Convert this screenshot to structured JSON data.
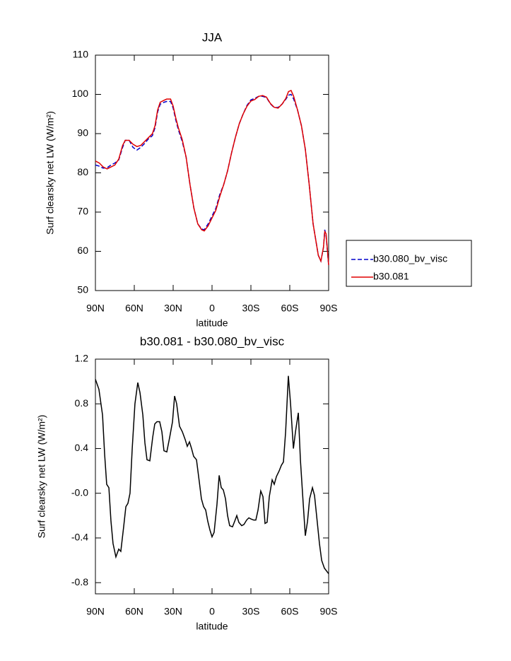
{
  "chart_data": [
    {
      "type": "line",
      "title": "JJA",
      "xlabel": "latitude",
      "ylabel": "Surf clearsky net LW (W/m²)",
      "xlim": [
        90,
        -90
      ],
      "ylim": [
        50,
        110
      ],
      "xticks": [
        {
          "value": 90,
          "label": "90N"
        },
        {
          "value": 60,
          "label": "60N"
        },
        {
          "value": 30,
          "label": "30N"
        },
        0,
        {
          "value": -30,
          "label": "30S"
        },
        {
          "value": -60,
          "label": "60S"
        },
        {
          "value": -90,
          "label": "90S"
        }
      ],
      "yticks": [
        50,
        60,
        70,
        80,
        90,
        100,
        110
      ],
      "legend": "right",
      "x": [
        90,
        87,
        84,
        81,
        78,
        75,
        72,
        69,
        67,
        64,
        61,
        58,
        55,
        52,
        49,
        46,
        44,
        42,
        40,
        37,
        35,
        32,
        30,
        28,
        26,
        23,
        20,
        17,
        14,
        11,
        8,
        6,
        3,
        0,
        -3,
        -6,
        -9,
        -12,
        -15,
        -18,
        -21,
        -24,
        -27,
        -30,
        -33,
        -36,
        -39,
        -42,
        -45,
        -48,
        -51,
        -54,
        -57,
        -59,
        -61,
        -63,
        -66,
        -69,
        -72,
        -75,
        -78,
        -80,
        -82,
        -84,
        -86,
        -87,
        -88,
        -90
      ],
      "series": [
        {
          "name": "b30.080_bv_visc",
          "color": "#0000cc",
          "style": "dashed",
          "values": [
            82,
            81.7,
            81.2,
            81.3,
            82,
            82.5,
            83.3,
            86.5,
            88.3,
            88.3,
            86.5,
            85.8,
            86.5,
            87.5,
            88.7,
            89.5,
            91.5,
            95.5,
            97.5,
            98,
            98.2,
            98.2,
            96.5,
            93.5,
            91,
            88,
            84,
            77,
            71,
            67,
            65.7,
            65.5,
            67,
            69,
            71,
            74.5,
            77,
            80.5,
            85,
            89,
            92.5,
            95,
            97.2,
            98.6,
            99,
            99.5,
            99.5,
            99.2,
            97.6,
            96.6,
            96.7,
            97.5,
            98.8,
            99.8,
            100,
            98.8,
            96,
            92,
            86,
            77,
            67,
            63,
            59,
            57.5,
            61,
            65.5,
            64,
            56.5
          ]
        },
        {
          "name": "b30.081",
          "color": "#e00000",
          "style": "solid",
          "values": [
            83,
            82.5,
            81.5,
            81,
            81.5,
            82,
            83.5,
            87,
            88.3,
            88.3,
            87.3,
            86.7,
            87,
            88,
            89,
            90,
            92,
            96,
            98,
            98.5,
            98.8,
            98.8,
            97,
            94,
            91.5,
            88.5,
            84,
            77,
            71,
            67,
            65.5,
            65.2,
            66.5,
            68.5,
            70.5,
            74,
            77,
            80.5,
            85,
            89,
            92.5,
            95,
            97,
            98.3,
            98.7,
            99.5,
            99.7,
            99.3,
            97.7,
            96.7,
            96.5,
            97.5,
            99,
            100.7,
            101,
            99.5,
            96,
            92,
            86,
            77,
            67,
            63,
            59,
            57.5,
            61,
            65,
            64.5,
            56.5
          ]
        }
      ]
    },
    {
      "type": "line",
      "title": "b30.081 - b30.080_bv_visc",
      "xlabel": "latitude",
      "ylabel": "Surf clearsky net LW (W/m²)",
      "xlim": [
        90,
        -90
      ],
      "ylim": [
        -0.9,
        1.2
      ],
      "xticks": [
        {
          "value": 90,
          "label": "90N"
        },
        {
          "value": 60,
          "label": "60N"
        },
        {
          "value": 30,
          "label": "30N"
        },
        0,
        {
          "value": -30,
          "label": "30S"
        },
        {
          "value": -60,
          "label": "60S"
        },
        {
          "value": -90,
          "label": "90S"
        }
      ],
      "yticks": [
        -0.8,
        -0.4,
        {
          "value": 0,
          "label": "-0.0"
        },
        0.4,
        0.8,
        1.2
      ],
      "color": "#000000",
      "x": [
        90,
        87.3,
        84.5,
        82.9,
        81.3,
        79.6,
        78,
        76.4,
        74.2,
        72,
        70.4,
        68.2,
        66.5,
        64.9,
        63.3,
        61.6,
        59.5,
        57.3,
        55.6,
        53.4,
        51.8,
        50.2,
        48,
        45.8,
        44.2,
        42.5,
        40.4,
        38.7,
        37.1,
        34.9,
        32.7,
        30.5,
        28.9,
        27.3,
        25.1,
        22.9,
        20.7,
        19.1,
        17.4,
        15.8,
        14.2,
        12,
        9.8,
        8.2,
        6.5,
        4.9,
        3.3,
        1.6,
        0,
        -1.6,
        -3.8,
        -5.5,
        -7.1,
        -8.7,
        -10.4,
        -12,
        -13.6,
        -15.8,
        -17.5,
        -19.1,
        -20.7,
        -22.9,
        -24.6,
        -26.7,
        -28.4,
        -30,
        -32.2,
        -33.8,
        -35.5,
        -37.6,
        -39.3,
        -40.9,
        -42.5,
        -44.2,
        -46.4,
        -48,
        -49.7,
        -51.8,
        -53.5,
        -55.1,
        -56.8,
        -58.9,
        -60.6,
        -62.8,
        -64.4,
        -66.6,
        -68.2,
        -70.4,
        -72,
        -73.7,
        -75.3,
        -77.5,
        -79.1,
        -80.7,
        -82.9,
        -84.6,
        -86.7,
        -90
      ],
      "values": [
        1.02,
        0.93,
        0.7,
        0.35,
        0.08,
        0.05,
        -0.25,
        -0.45,
        -0.57,
        -0.5,
        -0.52,
        -0.3,
        -0.12,
        -0.09,
        0.0,
        0.4,
        0.8,
        0.99,
        0.9,
        0.7,
        0.45,
        0.3,
        0.29,
        0.5,
        0.62,
        0.64,
        0.64,
        0.55,
        0.38,
        0.37,
        0.5,
        0.64,
        0.87,
        0.8,
        0.6,
        0.55,
        0.48,
        0.42,
        0.46,
        0.4,
        0.33,
        0.3,
        0.1,
        -0.05,
        -0.12,
        -0.15,
        -0.25,
        -0.33,
        -0.39,
        -0.35,
        -0.1,
        0.16,
        0.05,
        0.03,
        -0.05,
        -0.2,
        -0.29,
        -0.3,
        -0.25,
        -0.2,
        -0.26,
        -0.29,
        -0.28,
        -0.24,
        -0.22,
        -0.23,
        -0.24,
        -0.24,
        -0.15,
        0.02,
        -0.03,
        -0.27,
        -0.26,
        -0.03,
        0.12,
        0.08,
        0.15,
        0.2,
        0.25,
        0.28,
        0.55,
        1.05,
        0.8,
        0.4,
        0.55,
        0.72,
        0.3,
        -0.1,
        -0.38,
        -0.25,
        -0.05,
        0.05,
        -0.02,
        -0.2,
        -0.45,
        -0.6,
        -0.67,
        -0.72
      ]
    }
  ]
}
